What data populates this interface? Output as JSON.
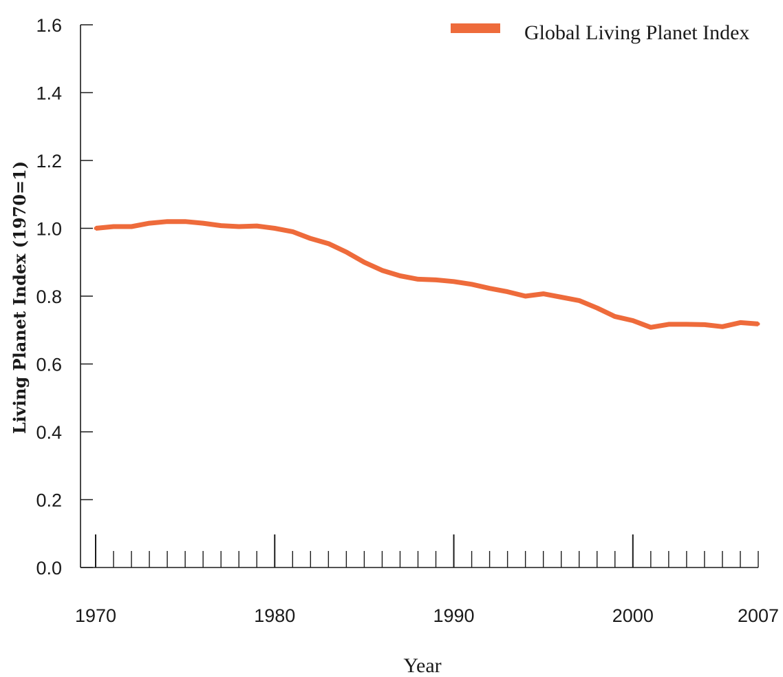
{
  "chart_data": {
    "type": "line",
    "xlabel": "Year",
    "ylabel": "Living Planet Index (1970=1)",
    "xlim": [
      1970,
      2007
    ],
    "ylim": [
      0,
      1.6
    ],
    "x_ticks": [
      1970,
      1980,
      1990,
      2000,
      2007
    ],
    "x_tick_labels": [
      "1970",
      "1980",
      "1990",
      "2000",
      "2007"
    ],
    "y_ticks": [
      0,
      0.2,
      0.4,
      0.6,
      0.8,
      1.0,
      1.2,
      1.4,
      1.6
    ],
    "y_tick_labels": [
      "0.0",
      "0.2",
      "0.4",
      "0.6",
      "0.8",
      "1.0",
      "1.2",
      "1.4",
      "1.6"
    ],
    "grid": false,
    "legend_position": "top-right",
    "series": [
      {
        "name": "Global Living Planet Index",
        "color": "#ee6b3b",
        "x": [
          1970,
          1971,
          1972,
          1973,
          1974,
          1975,
          1976,
          1977,
          1978,
          1979,
          1980,
          1981,
          1982,
          1983,
          1984,
          1985,
          1986,
          1987,
          1988,
          1989,
          1990,
          1991,
          1992,
          1993,
          1994,
          1995,
          1996,
          1997,
          1998,
          1999,
          2000,
          2001,
          2002,
          2003,
          2004,
          2005,
          2006,
          2007
        ],
        "values": [
          1.0,
          1.005,
          1.005,
          1.015,
          1.02,
          1.02,
          1.015,
          1.008,
          1.005,
          1.007,
          1.0,
          0.99,
          0.97,
          0.955,
          0.93,
          0.9,
          0.876,
          0.86,
          0.85,
          0.848,
          0.843,
          0.835,
          0.823,
          0.813,
          0.8,
          0.807,
          0.797,
          0.787,
          0.765,
          0.74,
          0.728,
          0.708,
          0.717,
          0.717,
          0.716,
          0.71,
          0.722,
          0.718
        ]
      }
    ]
  }
}
